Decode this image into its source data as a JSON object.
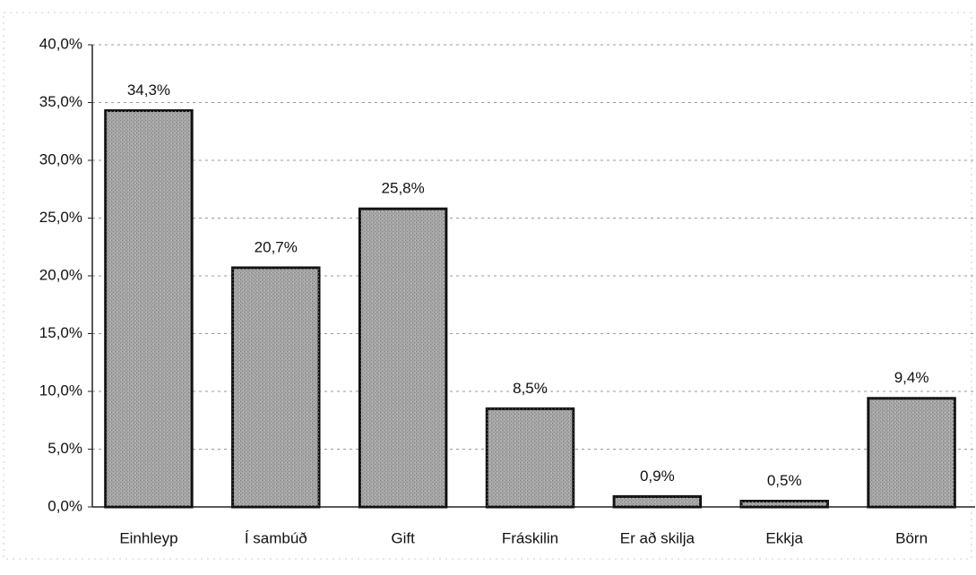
{
  "chart_data": {
    "type": "bar",
    "categories": [
      "Einhleyp",
      "Í sambúð",
      "Gift",
      "Fráskilin",
      "Er að skilja",
      "Ekkja",
      "Börn"
    ],
    "values": [
      34.3,
      20.7,
      25.8,
      8.5,
      0.9,
      0.5,
      9.4
    ],
    "value_labels": [
      "34,3%",
      "20,7%",
      "25,8%",
      "8,5%",
      "0,9%",
      "0,5%",
      "9,4%"
    ],
    "color": "#a6a6a6",
    "ylim": [
      0,
      40
    ],
    "yticks": [
      {
        "value": 0,
        "label": "0,0%"
      },
      {
        "value": 5,
        "label": "5,0%"
      },
      {
        "value": 10,
        "label": "10,0%"
      },
      {
        "value": 15,
        "label": "15,0%"
      },
      {
        "value": 20,
        "label": "20,0%"
      },
      {
        "value": 25,
        "label": "25,0%"
      },
      {
        "value": 30,
        "label": "30,0%"
      },
      {
        "value": 35,
        "label": "35,0%"
      },
      {
        "value": 40,
        "label": "40,0%"
      }
    ],
    "grid": true
  }
}
